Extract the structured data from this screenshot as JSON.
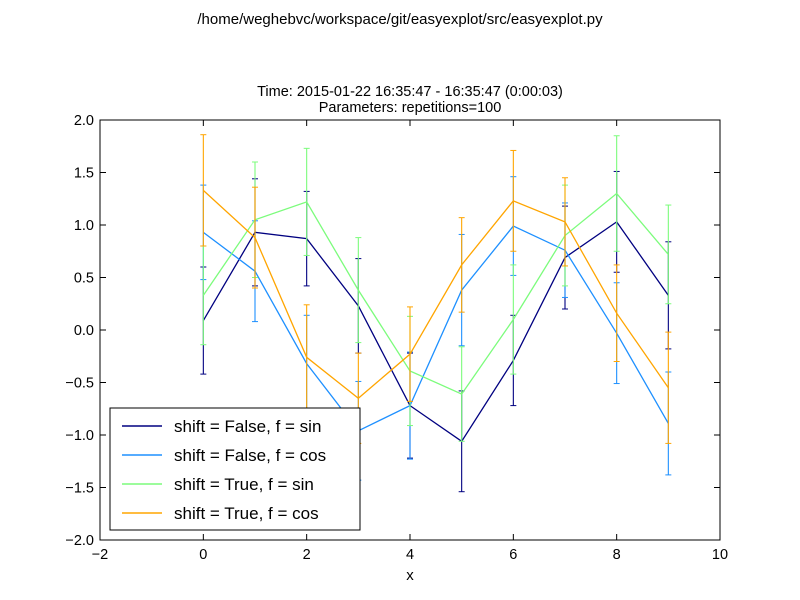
{
  "figure": {
    "suptitle": "/home/weghebvc/workspace/git/easyexplot/src/easyexplot.py"
  },
  "chart_data": {
    "type": "line",
    "title_lines": [
      "Time: 2015-01-22 16:35:47 - 16:35:47 (0:00:03)",
      "Parameters: repetitions=100"
    ],
    "xlabel": "x",
    "ylabel": "",
    "xlim": [
      -2,
      10
    ],
    "ylim": [
      -2.0,
      2.0
    ],
    "xticks": [
      -2,
      0,
      2,
      4,
      6,
      8,
      10
    ],
    "yticks": [
      -2.0,
      -1.5,
      -1.0,
      -0.5,
      0.0,
      0.5,
      1.0,
      1.5,
      2.0
    ],
    "ytick_labels": [
      "−2.0",
      "−1.5",
      "−1.0",
      "−0.5",
      "0.0",
      "0.5",
      "1.0",
      "1.5",
      "2.0"
    ],
    "xtick_labels": [
      "−2",
      "0",
      "2",
      "4",
      "6",
      "8",
      "10"
    ],
    "grid": false,
    "legend_position": "lower-left",
    "x": [
      0,
      1,
      2,
      3,
      4,
      5,
      6,
      7,
      8,
      9
    ],
    "series": [
      {
        "name": "shift = False, f = sin",
        "color": "#000080",
        "values": [
          0.09,
          0.93,
          0.87,
          0.23,
          -0.72,
          -1.06,
          -0.29,
          0.69,
          1.03,
          0.33
        ],
        "errors": [
          0.51,
          0.51,
          0.45,
          0.45,
          0.5,
          0.48,
          0.43,
          0.49,
          0.48,
          0.51
        ]
      },
      {
        "name": "shift = False, f = cos",
        "color": "#1e90ff",
        "values": [
          0.93,
          0.56,
          -0.32,
          -0.96,
          -0.72,
          0.38,
          0.99,
          0.76,
          -0.03,
          -0.89
        ],
        "errors": [
          0.45,
          0.48,
          0.46,
          0.47,
          0.51,
          0.53,
          0.47,
          0.45,
          0.48,
          0.49
        ]
      },
      {
        "name": "shift = True, f = sin",
        "color": "#7cfc7c",
        "values": [
          0.33,
          1.05,
          1.22,
          0.38,
          -0.39,
          -0.61,
          0.1,
          0.9,
          1.3,
          0.72
        ],
        "errors": [
          0.47,
          0.55,
          0.51,
          0.5,
          0.52,
          0.45,
          0.52,
          0.48,
          0.55,
          0.47
        ]
      },
      {
        "name": "shift = True, f = cos",
        "color": "#ffa500",
        "values": [
          1.33,
          0.88,
          -0.26,
          -0.65,
          -0.23,
          0.62,
          1.23,
          1.03,
          0.16,
          -0.55
        ],
        "errors": [
          0.53,
          0.48,
          0.5,
          0.43,
          0.45,
          0.45,
          0.48,
          0.42,
          0.46,
          0.53
        ]
      }
    ]
  }
}
